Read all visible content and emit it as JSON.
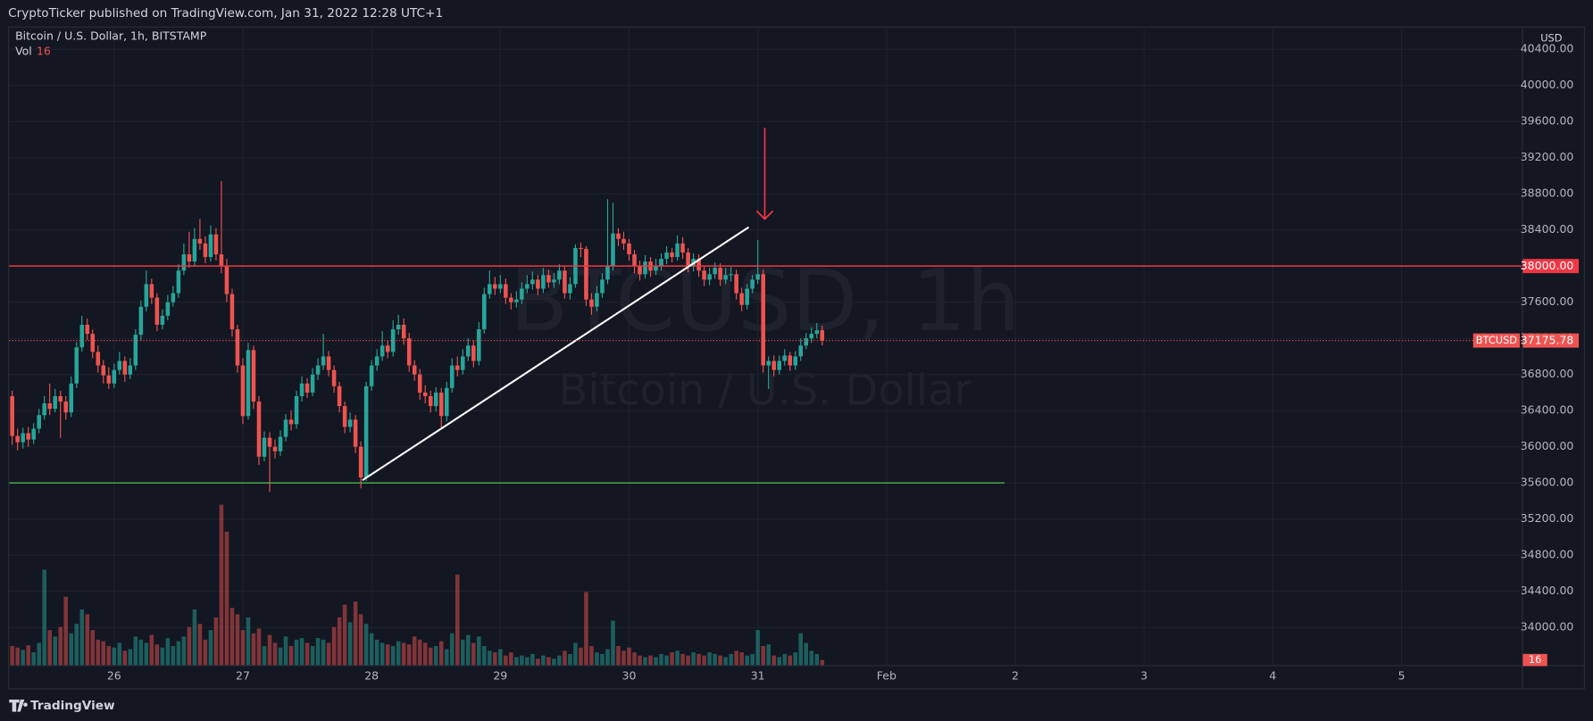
{
  "header": "CryptoTicker published on TradingView.com, Jan 31, 2022 12:28 UTC+1",
  "footer": "TradingView",
  "chart_data": {
    "type": "candlestick",
    "title": "Bitcoin / U.S. Dollar, 1h, BITSTAMP",
    "volume_label": "Vol",
    "watermark": "BTCUSD, 1h",
    "watermark_subtitle": "Bitcoin / U.S. Dollar",
    "currency": "USD",
    "symbol": "BTCUSD",
    "up_color": "#26a69a",
    "down_color": "#ef5350",
    "grid": true,
    "x_labels": [
      "26",
      "27",
      "28",
      "29",
      "30",
      "31",
      "Feb",
      "2",
      "3",
      "4",
      "5"
    ],
    "ylim": [
      33584,
      40629
    ],
    "yticks": [
      {
        "value": 34000,
        "label": "34000.00"
      },
      {
        "value": 34400,
        "label": "34400.00"
      },
      {
        "value": 34800,
        "label": "34800.00"
      },
      {
        "value": 35200,
        "label": "35200.00"
      },
      {
        "value": 35600,
        "label": "35600.00"
      },
      {
        "value": 36000,
        "label": "36000.00"
      },
      {
        "value": 36400,
        "label": "36400.00"
      },
      {
        "value": 36800,
        "label": "36800.00"
      },
      {
        "value": 37200,
        "label": "37200.00"
      },
      {
        "value": 37600,
        "label": "37600.00"
      },
      {
        "value": 38000,
        "label": "38000.00"
      },
      {
        "value": 38400,
        "label": "38400.00"
      },
      {
        "value": 38800,
        "label": "38800.00"
      },
      {
        "value": 39200,
        "label": "39200.00"
      },
      {
        "value": 39600,
        "label": "39600.00"
      },
      {
        "value": 40000,
        "label": "40000.00"
      },
      {
        "value": 40400,
        "label": "40400.00"
      }
    ],
    "hlines": [
      {
        "value": 38000,
        "label": "38000.00",
        "color": "#f23645"
      },
      {
        "value": 35600,
        "color": "#4caf50"
      }
    ],
    "trendline": {
      "from": 35630,
      "to": 38430,
      "color": "#ffffff"
    },
    "arrow": {
      "from": 39530,
      "to": 38520,
      "color": "#f23645"
    },
    "open": [
      36560,
      36120,
      36050,
      36150,
      36080,
      36200,
      36350,
      36480,
      36420,
      36560,
      36500,
      36380,
      36700,
      37100,
      37350,
      37250,
      37050,
      36900,
      36790,
      36700,
      36850,
      36950,
      36800,
      36900,
      37240,
      37550,
      37800,
      37650,
      37350,
      37450,
      37600,
      37700,
      37950,
      38130,
      38050,
      38300,
      38250,
      38100,
      38350,
      38130,
      38000,
      37690,
      37300,
      36900,
      36340,
      37070,
      36500,
      35890,
      36100,
      36000,
      35950,
      36110,
      36300,
      36250,
      36560,
      36700,
      36600,
      36800,
      36900,
      37000,
      36850,
      36670,
      36450,
      36220,
      36300,
      36000,
      35660,
      36670,
      36900,
      37000,
      37120,
      37050,
      37300,
      37350,
      37200,
      36900,
      36800,
      36600,
      36560,
      36450,
      36600,
      36340,
      36650,
      36900,
      36850,
      37000,
      37120,
      36950,
      37300,
      37690,
      37800,
      37750,
      37800,
      37650,
      37600,
      37630,
      37750,
      37800,
      37850,
      37750,
      37900,
      37820,
      37850,
      37950,
      37700,
      37800,
      38200,
      38190,
      37630,
      37550,
      37700,
      37850,
      38000,
      38360,
      38300,
      38250,
      38130,
      38000,
      37910,
      38050,
      37950,
      38000,
      38080,
      38150,
      38100,
      38250,
      38150,
      38000,
      38080,
      37950,
      37850,
      37910,
      37980,
      37850,
      37900,
      37910,
      37700,
      37570,
      37750,
      37850,
      37910,
      36900,
      36950,
      36850,
      36950,
      37010,
      36900,
      37000,
      37120,
      37200,
      37250,
      37290
    ],
    "high": [
      36620,
      36200,
      36210,
      36220,
      36260,
      36420,
      36560,
      36700,
      36640,
      36620,
      36560,
      36780,
      37160,
      37450,
      37420,
      37300,
      37120,
      36960,
      36880,
      36920,
      37050,
      37000,
      36980,
      37300,
      37620,
      37950,
      37860,
      37700,
      37520,
      37680,
      37780,
      38020,
      38250,
      38380,
      38420,
      38520,
      38330,
      38450,
      38420,
      38940,
      38080,
      37750,
      37350,
      36980,
      37150,
      37120,
      36560,
      36170,
      36160,
      36080,
      36180,
      36360,
      36400,
      36620,
      36780,
      36760,
      36870,
      36980,
      37250,
      37060,
      36900,
      36720,
      36500,
      36380,
      36350,
      36060,
      36720,
      36960,
      37080,
      37280,
      37180,
      37400,
      37460,
      37420,
      37260,
      36960,
      36860,
      36680,
      36620,
      36660,
      36650,
      36720,
      36980,
      37000,
      37080,
      37200,
      37180,
      37380,
      37760,
      37950,
      37880,
      37900,
      37860,
      37700,
      37720,
      37820,
      37900,
      37940,
      37900,
      37980,
      37960,
      37920,
      38020,
      38000,
      37880,
      38240,
      38260,
      38220,
      37700,
      37780,
      37920,
      38740,
      38700,
      38420,
      38380,
      38300,
      38180,
      38060,
      38120,
      38100,
      38080,
      38140,
      38220,
      38200,
      38340,
      38320,
      38200,
      38140,
      38130,
      38000,
      37980,
      38040,
      38030,
      37980,
      37990,
      37960,
      37760,
      37800,
      37900,
      38290,
      37960,
      37000,
      37010,
      37010,
      37080,
      37050,
      37060,
      37200,
      37260,
      37320,
      37370,
      37340
    ],
    "low": [
      36020,
      35960,
      35980,
      36000,
      36030,
      36150,
      36300,
      36350,
      36380,
      36100,
      36300,
      36330,
      36650,
      37050,
      37180,
      36980,
      36820,
      36700,
      36640,
      36650,
      36800,
      36720,
      36750,
      36850,
      37180,
      37500,
      37580,
      37280,
      37300,
      37400,
      37550,
      37650,
      37900,
      37980,
      38000,
      38180,
      38030,
      38050,
      38060,
      37920,
      37600,
      37220,
      36820,
      36250,
      36300,
      36420,
      35800,
      35840,
      35500,
      35870,
      35900,
      36060,
      36180,
      36200,
      36500,
      36540,
      36560,
      36740,
      36850,
      36780,
      36600,
      36380,
      36150,
      36160,
      35930,
      35540,
      35620,
      36620,
      36840,
      36950,
      36980,
      37000,
      37240,
      37130,
      36830,
      36730,
      36520,
      36480,
      36380,
      36390,
      36200,
      36280,
      36600,
      36780,
      36800,
      36950,
      36880,
      36900,
      37250,
      37640,
      37680,
      37700,
      37580,
      37520,
      37540,
      37580,
      37700,
      37740,
      37680,
      37700,
      37760,
      37760,
      37800,
      37640,
      37630,
      37760,
      38100,
      37560,
      37460,
      37500,
      37650,
      37800,
      37950,
      38220,
      38180,
      38060,
      37920,
      37840,
      37860,
      37880,
      37900,
      37950,
      38020,
      38040,
      38060,
      38080,
      37930,
      37940,
      37880,
      37780,
      37790,
      37860,
      37780,
      37800,
      37830,
      37630,
      37500,
      37520,
      37700,
      37800,
      36820,
      36640,
      36780,
      36800,
      36900,
      36840,
      36850,
      36950,
      37080,
      37150,
      37200,
      37120
    ],
    "close": [
      36120,
      36050,
      36150,
      36080,
      36200,
      36350,
      36480,
      36420,
      36560,
      36500,
      36380,
      36700,
      37100,
      37350,
      37250,
      37050,
      36900,
      36790,
      36700,
      36850,
      36950,
      36800,
      36900,
      37240,
      37550,
      37800,
      37650,
      37350,
      37450,
      37600,
      37700,
      37950,
      38130,
      38050,
      38300,
      38250,
      38100,
      38350,
      38130,
      38000,
      37690,
      37300,
      36900,
      36340,
      37070,
      36500,
      35890,
      36100,
      36000,
      35950,
      36110,
      36300,
      36250,
      36560,
      36700,
      36600,
      36800,
      36900,
      37000,
      36850,
      36670,
      36450,
      36220,
      36300,
      36000,
      35660,
      36670,
      36900,
      37000,
      37120,
      37050,
      37300,
      37350,
      37200,
      36900,
      36800,
      36600,
      36560,
      36450,
      36600,
      36340,
      36650,
      36900,
      36850,
      37000,
      37120,
      36950,
      37300,
      37690,
      37800,
      37750,
      37800,
      37650,
      37600,
      37630,
      37750,
      37800,
      37850,
      37750,
      37900,
      37820,
      37850,
      37950,
      37700,
      37800,
      38200,
      38190,
      37630,
      37550,
      37700,
      37850,
      38000,
      38360,
      38300,
      38250,
      38130,
      38000,
      37910,
      38050,
      37950,
      38000,
      38080,
      38150,
      38100,
      38250,
      38150,
      38000,
      38080,
      37950,
      37850,
      37910,
      37980,
      37850,
      37900,
      37910,
      37700,
      37570,
      37750,
      37850,
      37910,
      36900,
      36950,
      36850,
      36950,
      37010,
      36900,
      37000,
      37120,
      37200,
      37250,
      37290,
      37175.78
    ],
    "volume": [
      60,
      55,
      48,
      62,
      40,
      70,
      300,
      110,
      90,
      120,
      215,
      100,
      130,
      175,
      160,
      110,
      80,
      75,
      60,
      55,
      70,
      45,
      50,
      90,
      80,
      70,
      95,
      65,
      55,
      85,
      60,
      75,
      90,
      120,
      175,
      130,
      80,
      110,
      150,
      505,
      420,
      180,
      160,
      110,
      150,
      100,
      115,
      60,
      95,
      70,
      55,
      90,
      60,
      80,
      85,
      70,
      60,
      85,
      80,
      70,
      120,
      150,
      190,
      135,
      200,
      160,
      130,
      100,
      80,
      70,
      65,
      60,
      75,
      70,
      65,
      90,
      80,
      70,
      55,
      60,
      75,
      50,
      100,
      285,
      80,
      95,
      70,
      90,
      60,
      45,
      40,
      50,
      30,
      40,
      25,
      30,
      25,
      35,
      20,
      30,
      25,
      20,
      30,
      45,
      35,
      70,
      55,
      230,
      60,
      40,
      35,
      50,
      140,
      60,
      45,
      55,
      40,
      30,
      25,
      30,
      25,
      35,
      30,
      40,
      45,
      35,
      30,
      40,
      35,
      30,
      40,
      35,
      30,
      25,
      35,
      45,
      40,
      30,
      35,
      110,
      60,
      65,
      30,
      25,
      35,
      30,
      40,
      100,
      70,
      45,
      35,
      16
    ]
  }
}
